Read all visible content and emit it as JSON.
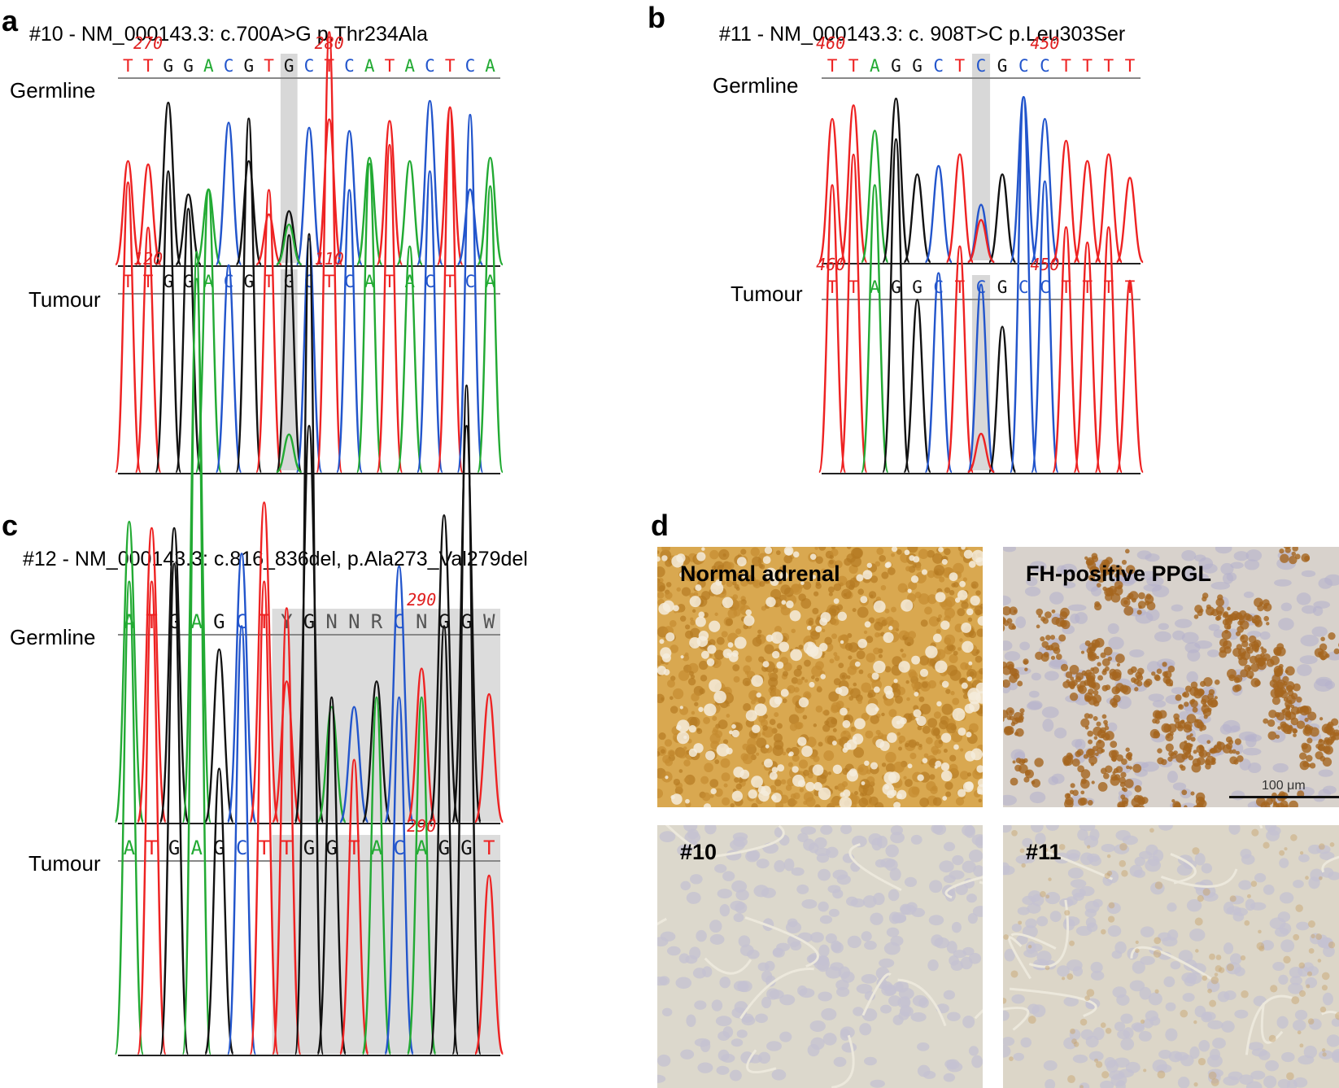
{
  "colors": {
    "A": "#22aa33",
    "C": "#2255cc",
    "G": "#111111",
    "T": "#ee2222",
    "R": "#555555",
    "Y": "#555555",
    "N": "#555555",
    "W": "#555555"
  },
  "panels": {
    "a": {
      "letter": "a",
      "title": "#10 - NM_000143.3: c.700A>G p.Thr234Ala",
      "tracks": [
        {
          "label": "Germline",
          "seq": "TTGGACGTGCTCATACTCA",
          "positions": [
            "270",
            "280"
          ],
          "highlight": 8,
          "peaks": [
            "T:0.62",
            "T:0.60",
            "G:0.97",
            "G:0.42",
            "A:0.45",
            "C:0.85",
            "G:0.62",
            "T:0.30",
            "G:0.32",
            "C:0.82",
            "T:0.87",
            "C:0.80",
            "A:0.64",
            "T:0.86",
            "A:0.62",
            "C:0.98",
            "T:0.94",
            "C:0.45",
            "A:0.64"
          ],
          "extra": [
            {
              "i": 8,
              "b": "A",
              "h": 0.24
            }
          ]
        },
        {
          "label": "Tumour",
          "seq": "TTGGACGTGCTCATACTCA",
          "positions": [
            "120",
            "110"
          ],
          "highlight": 8,
          "peaks": [
            "T:0.77",
            "T:0.65",
            "G:0.80",
            "G:0.70",
            "A:0.75",
            "C:0.55",
            "G:0.94",
            "T:0.75",
            "G:0.63",
            "C:0.62",
            "T:1.17",
            "C:0.75",
            "A:0.82",
            "T:0.87",
            "A:0.60",
            "C:0.80",
            "T:0.97",
            "C:0.95",
            "A:0.76"
          ],
          "extra": [
            {
              "i": 8,
              "b": "A",
              "h": 0.1
            }
          ]
        }
      ]
    },
    "b": {
      "letter": "b",
      "title": "#11 - NM_000143.3: c. 908T>C p.Leu303Ser",
      "tracks": [
        {
          "label": "Germline",
          "seq": "TTAGGCTCGCCTTTT",
          "positions": [
            "460",
            "450"
          ],
          "highlight": 7,
          "peaks": [
            "T:0.85",
            "T:0.93",
            "A:0.78",
            "G:0.97",
            "G:0.52",
            "C:0.57",
            "T:0.64",
            "C:0.34",
            "G:0.52",
            "C:0.98",
            "C:0.85",
            "T:0.72",
            "T:0.60",
            "T:0.64",
            "T:0.50"
          ],
          "extra": [
            {
              "i": 7,
              "b": "T",
              "h": 0.25
            }
          ]
        },
        {
          "label": "Tumour",
          "seq": "TTAGGCTCGCCTTTT",
          "positions": [
            "460",
            "450"
          ],
          "highlight": 7,
          "peaks": [
            "T:0.75",
            "T:0.83",
            "A:0.75",
            "G:0.87",
            "G:0.45",
            "C:0.52",
            "T:0.59",
            "C:0.49",
            "G:0.38",
            "C:0.98",
            "C:0.76",
            "T:0.64",
            "T:0.60",
            "T:0.64",
            "T:0.50"
          ],
          "extra": [
            {
              "i": 7,
              "b": "T",
              "h": 0.1
            }
          ]
        }
      ]
    },
    "c": {
      "letter": "c",
      "title": "#12 - NM_000143.3: c.816_836del, p.Ala273_Val279del",
      "tracks": [
        {
          "label": "Germline",
          "seq": "ATGAGCTYGNNRCNGGW",
          "positions": [
            "290"
          ],
          "highlight": 7,
          "peaks": [
            "A:0.47",
            "T:0.46",
            "G:0.46",
            "A:0.85",
            "G:0.27",
            "C:0.42",
            "T:0.50",
            "T:0.22",
            "G:0.62",
            "A:0.18",
            "C:0.18",
            "G:0.22",
            "C:0.40",
            "T:0.24",
            "G:0.48",
            "G:0.62",
            "T:0.20"
          ]
        },
        {
          "label": "Tumour",
          "seq": "ATGAGCTTGGTACAGGT",
          "positions": [
            "290"
          ],
          "highlight": 7,
          "peaks": [
            "A:0.53",
            "T:0.53",
            "G:0.55",
            "A:0.90",
            "G:0.32",
            "C:0.48",
            "T:0.53",
            "T:0.50",
            "G:0.92",
            "G:0.40",
            "T:0.33",
            "A:0.40",
            "C:0.40",
            "A:0.40",
            "G:0.48",
            "G:0.75",
            "T:0.20"
          ]
        }
      ]
    },
    "d": {
      "letter": "d",
      "tiles": [
        {
          "label": "Normal adrenal",
          "style": "strong"
        },
        {
          "label": "FH-positive PPGL",
          "style": "patchy"
        },
        {
          "label": "#10",
          "style": "negative"
        },
        {
          "label": "#11",
          "style": "weak"
        }
      ],
      "scale_label": "100 μm"
    }
  }
}
